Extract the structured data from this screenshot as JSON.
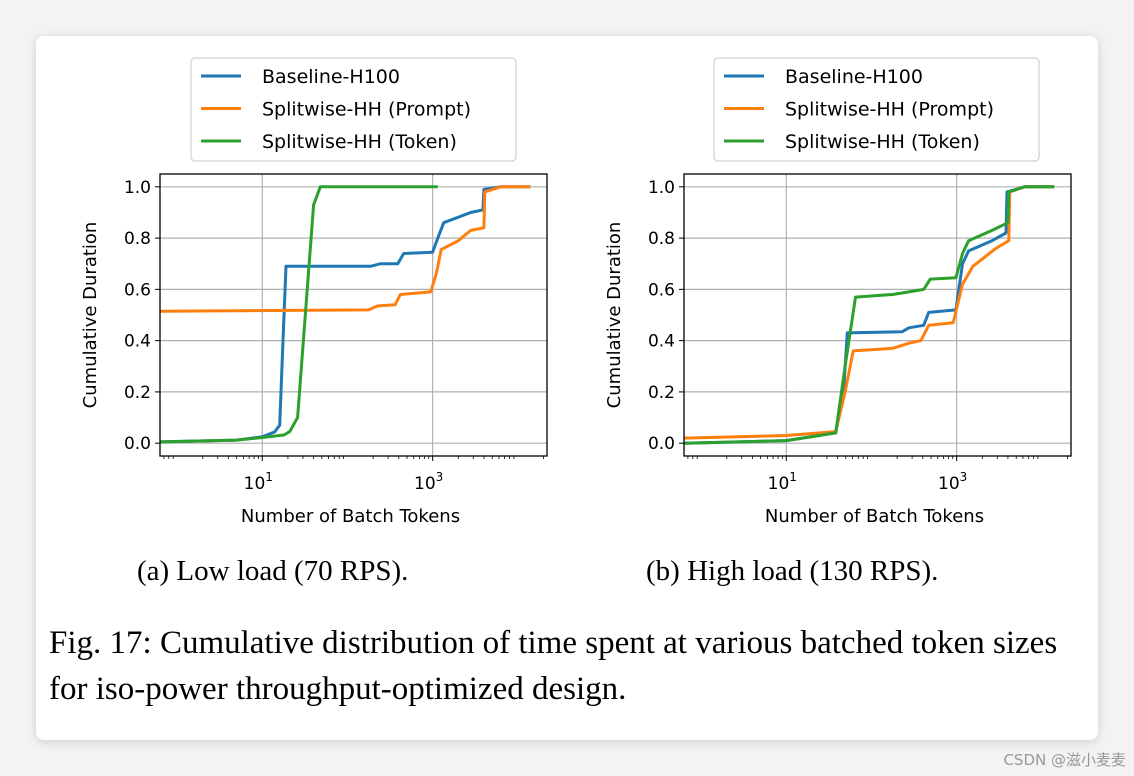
{
  "chart_data": [
    {
      "type": "line",
      "xscale": "log",
      "xlim": [
        0.63,
        22000
      ],
      "ylim": [
        -0.05,
        1.05
      ],
      "xticks": [
        {
          "value": 10,
          "label": "10^1"
        },
        {
          "value": 1000,
          "label": "10^3"
        }
      ],
      "yticks": [
        "0.0",
        "0.2",
        "0.4",
        "0.6",
        "0.8",
        "1.0"
      ],
      "xlabel": "Number of Batch Tokens",
      "ylabel": "Cumulative Duration",
      "grid": true,
      "legend": "top",
      "subcaption": "(a) Low load (70 RPS).",
      "series": [
        {
          "name": "Baseline-H100",
          "color": "#1f77b4",
          "x": [
            0.63,
            5,
            10,
            14,
            16,
            17.5,
            19,
            186,
            245,
            390,
            457,
            1000,
            1150,
            1350,
            2800,
            3900,
            4000,
            6300,
            14000
          ],
          "y": [
            0.005,
            0.012,
            0.025,
            0.044,
            0.07,
            0.4,
            0.69,
            0.69,
            0.7,
            0.7,
            0.74,
            0.745,
            0.8,
            0.86,
            0.9,
            0.91,
            0.99,
            1.0,
            1.0
          ]
        },
        {
          "name": "Splitwise-HH (Prompt)",
          "color": "#ff7f0e",
          "x": [
            0.63,
            177,
            224,
            363,
            417,
            950,
            1100,
            1260,
            2000,
            2800,
            4000,
            4100,
            6300,
            14000
          ],
          "y": [
            0.515,
            0.52,
            0.535,
            0.54,
            0.58,
            0.59,
            0.66,
            0.755,
            0.79,
            0.83,
            0.84,
            0.98,
            1.0,
            1.0
          ]
        },
        {
          "name": "Splitwise-HH (Token)",
          "color": "#2ca02c",
          "x": [
            0.63,
            5,
            10,
            18,
            21,
            26,
            32,
            40,
            48,
            1150
          ],
          "y": [
            0.005,
            0.012,
            0.022,
            0.032,
            0.045,
            0.1,
            0.5,
            0.93,
            1.0,
            1.0
          ]
        }
      ]
    },
    {
      "type": "line",
      "xscale": "log",
      "xlim": [
        0.63,
        22000
      ],
      "ylim": [
        -0.05,
        1.05
      ],
      "xticks": [
        {
          "value": 10,
          "label": "10^1"
        },
        {
          "value": 1000,
          "label": "10^3"
        }
      ],
      "yticks": [
        "0.0",
        "0.2",
        "0.4",
        "0.6",
        "0.8",
        "1.0"
      ],
      "xlabel": "Number of Batch Tokens",
      "ylabel": "Cumulative Duration",
      "grid": true,
      "legend": "top",
      "subcaption": "(b) High load (130 RPS).",
      "series": [
        {
          "name": "Baseline-H100",
          "color": "#1f77b4",
          "x": [
            0.63,
            10,
            38,
            47,
            52,
            230,
            275,
            410,
            470,
            980,
            1170,
            1380,
            2600,
            3800,
            3900,
            6300,
            14000
          ],
          "y": [
            0.0,
            0.01,
            0.04,
            0.2,
            0.43,
            0.435,
            0.45,
            0.46,
            0.51,
            0.52,
            0.7,
            0.75,
            0.79,
            0.82,
            0.98,
            1.0,
            1.0
          ]
        },
        {
          "name": "Splitwise-HH (Prompt)",
          "color": "#ff7f0e",
          "x": [
            0.63,
            10,
            38,
            49,
            61,
            177,
            275,
            380,
            470,
            910,
            1170,
            1550,
            2900,
            4100,
            4200,
            6300,
            14000
          ],
          "y": [
            0.02,
            0.03,
            0.045,
            0.2,
            0.36,
            0.37,
            0.39,
            0.4,
            0.46,
            0.47,
            0.62,
            0.69,
            0.76,
            0.79,
            0.98,
            1.0,
            1.0
          ]
        },
        {
          "name": "Splitwise-HH (Token)",
          "color": "#2ca02c",
          "x": [
            0.63,
            10,
            38,
            49,
            65,
            177,
            275,
            410,
            490,
            980,
            1170,
            1380,
            2600,
            4000,
            4100,
            6300,
            14000
          ],
          "y": [
            0.0,
            0.01,
            0.04,
            0.3,
            0.57,
            0.58,
            0.59,
            0.6,
            0.64,
            0.645,
            0.74,
            0.79,
            0.83,
            0.86,
            0.98,
            1.0,
            1.0
          ]
        }
      ]
    }
  ],
  "caption": "Fig. 17: Cumulative distribution of time spent at various batched token sizes for iso-power throughput-optimized design.",
  "watermark": "CSDN @滋小麦麦"
}
